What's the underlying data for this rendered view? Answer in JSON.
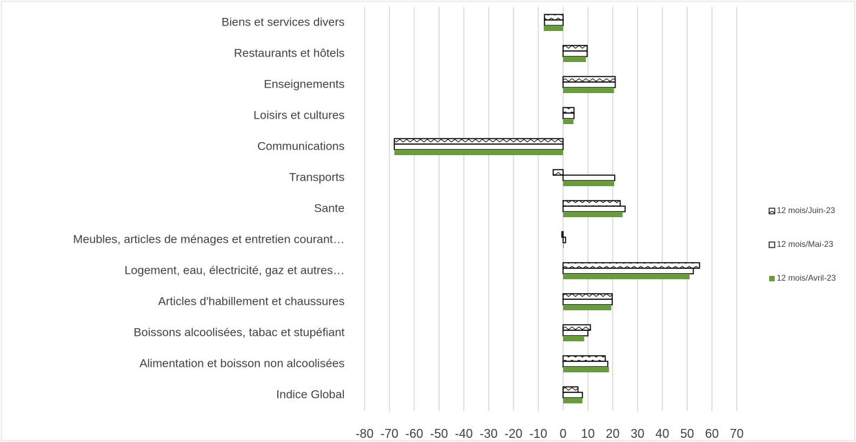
{
  "chart_data": {
    "type": "bar",
    "orientation": "horizontal",
    "categories": [
      "Biens et services divers",
      "Restaurants et hôtels",
      "Enseignements",
      "Loisirs et cultures",
      "Communications",
      "Transports",
      "Sante",
      "Meubles, articles de ménages et entretien courant…",
      "Logement, eau, électricité, gaz et autres…",
      "Articles d'habillement et chaussures",
      "Boissons alcoolisées, tabac et stupéfiant",
      "Alimentation et boisson non alcoolisées",
      "Indice Global"
    ],
    "series": [
      {
        "name": "12 mois/Juin-23",
        "color": "#000000",
        "pattern": "hatch",
        "values": [
          -7.5,
          9.7,
          21,
          4.4,
          -68,
          -4,
          23,
          -0.5,
          55,
          19.8,
          11,
          17,
          6
        ]
      },
      {
        "name": "12 mois/Mai-23",
        "color": "#ffffff",
        "values": [
          -7.5,
          9.7,
          21,
          4.4,
          -68,
          20.8,
          25,
          1,
          52.5,
          19.8,
          10,
          18,
          7.8
        ]
      },
      {
        "name": "12 mois/Avril-23",
        "color": "#6a9b3f",
        "values": [
          -7.8,
          9.2,
          20.5,
          4.2,
          -68,
          20.6,
          24,
          0,
          51,
          19.4,
          8.5,
          18.5,
          7.8
        ]
      }
    ],
    "xlim": [
      -80,
      70
    ],
    "xticks": [
      -80,
      -70,
      -60,
      -50,
      -40,
      -30,
      -20,
      -10,
      0,
      10,
      20,
      30,
      40,
      50,
      60,
      70
    ],
    "grid": true,
    "legend": "right"
  }
}
